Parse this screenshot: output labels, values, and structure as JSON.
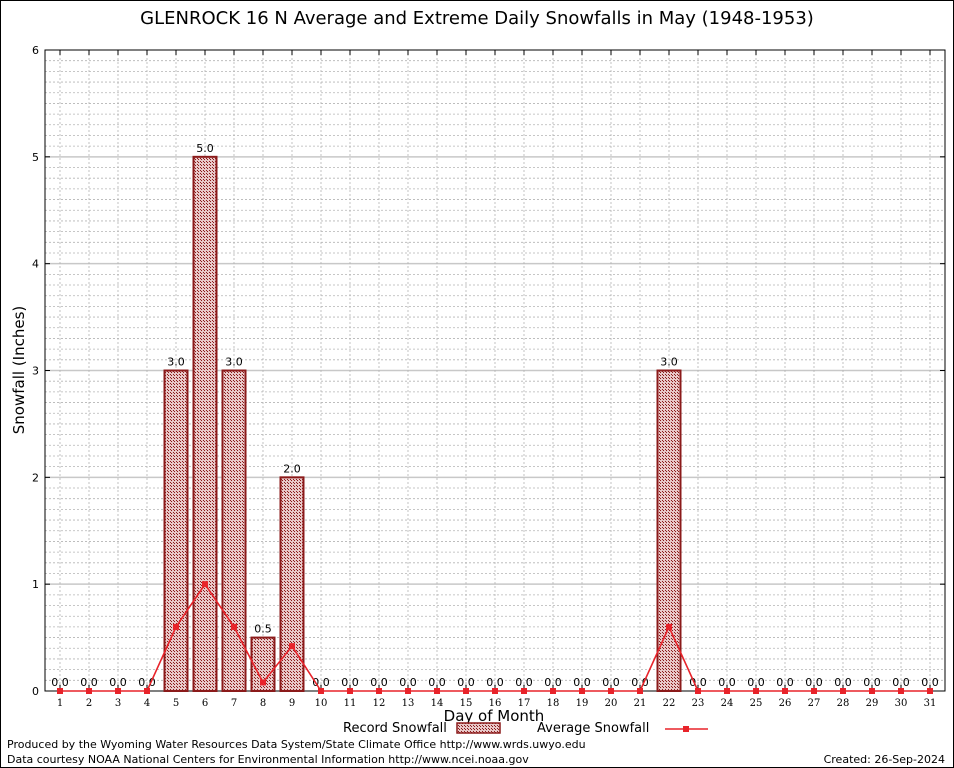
{
  "title": "GLENROCK 16 N Average and Extreme Daily Snowfalls in May (1948-1953)",
  "footer": {
    "produced_by": "Produced by the Wyoming Water Resources Data System/State Climate Office http://www.wrds.uwyo.edu",
    "courtesy": "Data courtesy NOAA National Centers for Environmental Information http://www.ncei.noaa.gov",
    "created": "Created: 26-Sep-2024"
  },
  "chart_data": {
    "type": "bar",
    "title": "GLENROCK 16 N Average and Extreme Daily Snowfalls in May (1948-1953)",
    "xlabel": "Day of Month",
    "ylabel": "Snowfall (Inches)",
    "ylim": [
      0,
      6
    ],
    "yticks": [
      "0",
      "1",
      "2",
      "3",
      "4",
      "5",
      "6"
    ],
    "grid": true,
    "categories": [
      "1",
      "2",
      "3",
      "4",
      "5",
      "6",
      "7",
      "8",
      "9",
      "10",
      "11",
      "12",
      "13",
      "14",
      "15",
      "16",
      "17",
      "18",
      "19",
      "20",
      "21",
      "22",
      "23",
      "24",
      "25",
      "26",
      "27",
      "28",
      "29",
      "30",
      "31"
    ],
    "series": [
      {
        "name": "Record Snowfall",
        "type": "bar",
        "color": "#8b1a1a",
        "values": [
          0,
          0,
          0,
          0,
          3.0,
          5.0,
          3.0,
          0.5,
          2.0,
          0,
          0,
          0,
          0,
          0,
          0,
          0,
          0,
          0,
          0,
          0,
          0,
          3.0,
          0,
          0,
          0,
          0,
          0,
          0,
          0,
          0,
          0
        ],
        "labels": [
          "0.0",
          "0.0",
          "0.0",
          "0.0",
          "3.0",
          "5.0",
          "3.0",
          "0.5",
          "2.0",
          "0.0",
          "0.0",
          "0.0",
          "0.0",
          "0.0",
          "0.0",
          "0.0",
          "0.0",
          "0.0",
          "0.0",
          "0.0",
          "0.0",
          "3.0",
          "0.0",
          "0.0",
          "0.0",
          "0.0",
          "0.0",
          "0.0",
          "0.0",
          "0.0",
          "0.0"
        ]
      },
      {
        "name": "Average Snowfall",
        "type": "line",
        "color": "#e8232a",
        "values": [
          0,
          0,
          0,
          0,
          0.6,
          1.0,
          0.6,
          0.08,
          0.42,
          0,
          0,
          0,
          0,
          0,
          0,
          0,
          0,
          0,
          0,
          0,
          0,
          0.6,
          0,
          0,
          0,
          0,
          0,
          0,
          0,
          0,
          0
        ]
      }
    ],
    "legend": "bottom"
  }
}
